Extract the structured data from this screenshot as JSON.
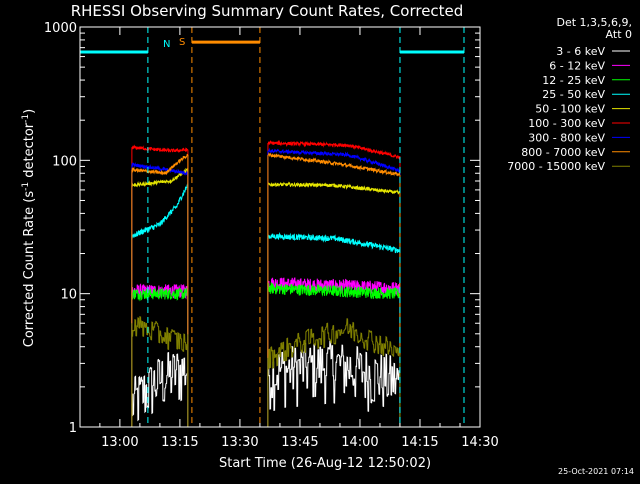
{
  "chart_data": {
    "type": "line",
    "title": "RHESSI Observing Summary Count Rates, Corrected",
    "xlabel": "Start Time (26-Aug-12 12:50:02)",
    "ylabel": "Corrected Count Rate (s",
    "ylabel_sup": "-1",
    "ylabel_mid": " detector",
    "ylabel_close": ")",
    "y_scale": "log",
    "ylim": [
      1,
      1000
    ],
    "xlim": [
      "12:50:02",
      "14:30:00"
    ],
    "x_ticks": [
      "13:00",
      "13:15",
      "13:30",
      "13:45",
      "14:00",
      "14:15",
      "14:30"
    ],
    "y_ticks": [
      "1",
      "10",
      "100",
      "1000"
    ],
    "legend": {
      "placement": "top-right-outside",
      "header": [
        "Det 1,3,5,6,9,",
        "Att 0"
      ],
      "entries": [
        {
          "label": "3 - 6 keV",
          "color": "#ffffff"
        },
        {
          "label": "6 - 12 keV",
          "color": "#ff00ff"
        },
        {
          "label": "12 - 25 keV",
          "color": "#00ff00"
        },
        {
          "label": "25 - 50 keV",
          "color": "#00ffff"
        },
        {
          "label": "50 - 100 keV",
          "color": "#e6e600"
        },
        {
          "label": "100 - 300 keV",
          "color": "#ff0000"
        },
        {
          "label": "300 - 800 keV",
          "color": "#0000ff"
        },
        {
          "label": "800 - 7000 keV",
          "color": "#ff8c00"
        },
        {
          "label": "7000 - 15000 keV",
          "color": "#808000"
        }
      ]
    },
    "annotations": {
      "night_label": "N",
      "saa_label": "S",
      "timestamp": "25-Oct-2021 07:14"
    },
    "markers": {
      "night": {
        "color": "#00ffff",
        "level": 650,
        "intervals": [
          [
            "12:50:02",
            "13:07"
          ],
          [
            "14:10",
            "14:26"
          ]
        ]
      },
      "saa": {
        "color": "#ff8c00",
        "level": 770,
        "intervals": [
          [
            "13:18",
            "13:35"
          ]
        ]
      }
    },
    "segments": [
      {
        "start": "13:03",
        "end": "13:17"
      },
      {
        "start": "13:37",
        "end": "14:10"
      }
    ],
    "series": [
      {
        "name": "3 - 6 keV",
        "color": "#ffffff",
        "s1": [
          [
            0,
            1.5
          ],
          [
            0.5,
            2.3
          ],
          [
            1,
            2.8
          ]
        ],
        "s2": [
          [
            0,
            2.6
          ],
          [
            0.5,
            3.0
          ],
          [
            1,
            2.2
          ]
        ]
      },
      {
        "name": "6 - 12 keV",
        "color": "#ff00ff",
        "s1": [
          [
            0,
            10.5
          ],
          [
            1,
            10.5
          ]
        ],
        "s2": [
          [
            0,
            12.0
          ],
          [
            1,
            11.0
          ]
        ]
      },
      {
        "name": "12 - 25 keV",
        "color": "#00ff00",
        "s1": [
          [
            0,
            10.0
          ],
          [
            1,
            10.0
          ]
        ],
        "s2": [
          [
            0,
            11.0
          ],
          [
            1,
            10.0
          ]
        ]
      },
      {
        "name": "25 - 50 keV",
        "color": "#00ffff",
        "s1": [
          [
            0,
            27
          ],
          [
            0.5,
            33
          ],
          [
            0.8,
            45
          ],
          [
            1,
            65
          ]
        ],
        "s2": [
          [
            0,
            27
          ],
          [
            0.5,
            26
          ],
          [
            1,
            21
          ]
        ]
      },
      {
        "name": "50 - 100 keV",
        "color": "#e6e600",
        "s1": [
          [
            0,
            65
          ],
          [
            0.7,
            70
          ],
          [
            1,
            85
          ]
        ],
        "s2": [
          [
            0,
            66
          ],
          [
            0.5,
            65
          ],
          [
            1,
            57
          ]
        ]
      },
      {
        "name": "100 - 300 keV",
        "color": "#ff0000",
        "s1": [
          [
            0,
            125
          ],
          [
            0.7,
            118
          ],
          [
            1,
            120
          ]
        ],
        "s2": [
          [
            0,
            135
          ],
          [
            0.6,
            130
          ],
          [
            1,
            105
          ]
        ]
      },
      {
        "name": "300 - 800 keV",
        "color": "#0000ff",
        "s1": [
          [
            0,
            93
          ],
          [
            1,
            80
          ]
        ],
        "s2": [
          [
            0,
            118
          ],
          [
            0.6,
            110
          ],
          [
            1,
            83
          ]
        ]
      },
      {
        "name": "800 - 7000 keV",
        "color": "#ff8c00",
        "s1": [
          [
            0,
            85
          ],
          [
            0.6,
            80
          ],
          [
            1,
            110
          ]
        ],
        "s2": [
          [
            0,
            110
          ],
          [
            0.5,
            95
          ],
          [
            1,
            78
          ]
        ]
      },
      {
        "name": "7000 - 15000 keV",
        "color": "#808000",
        "s1": [
          [
            0,
            6.0
          ],
          [
            0.5,
            5.0
          ],
          [
            1,
            4.2
          ]
        ],
        "s2": [
          [
            0,
            3.3
          ],
          [
            0.3,
            4.5
          ],
          [
            0.6,
            5.5
          ],
          [
            1,
            3.5
          ]
        ]
      }
    ]
  }
}
